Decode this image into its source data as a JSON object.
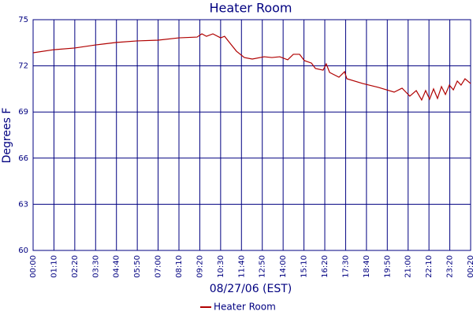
{
  "chart_data": {
    "type": "line",
    "title": "Heater Room",
    "x_label": "08/27/06 (EST)",
    "y_label": "Degrees F",
    "xlim": [
      0,
      21
    ],
    "ylim": [
      60,
      75
    ],
    "yticks": [
      60,
      63,
      66,
      69,
      72,
      75
    ],
    "xticks": [
      {
        "value": 0,
        "label": "00:00"
      },
      {
        "value": 1,
        "label": "01:10"
      },
      {
        "value": 2,
        "label": "02:20"
      },
      {
        "value": 3,
        "label": "03:30"
      },
      {
        "value": 4,
        "label": "04:40"
      },
      {
        "value": 5,
        "label": "05:50"
      },
      {
        "value": 6,
        "label": "07:00"
      },
      {
        "value": 7,
        "label": "08:10"
      },
      {
        "value": 8,
        "label": "09:20"
      },
      {
        "value": 9,
        "label": "10:30"
      },
      {
        "value": 10,
        "label": "11:40"
      },
      {
        "value": 11,
        "label": "12:50"
      },
      {
        "value": 12,
        "label": "14:00"
      },
      {
        "value": 13,
        "label": "15:10"
      },
      {
        "value": 14,
        "label": "16:20"
      },
      {
        "value": 15,
        "label": "17:30"
      },
      {
        "value": 16,
        "label": "18:40"
      },
      {
        "value": 17,
        "label": "19:50"
      },
      {
        "value": 18,
        "label": "21:00"
      },
      {
        "value": 19,
        "label": "22:10"
      },
      {
        "value": 20,
        "label": "23:20"
      },
      {
        "value": 21,
        "label": "00:20"
      }
    ],
    "grid": true,
    "legend": "bottom",
    "x": [
      0,
      1,
      2,
      3,
      4,
      5,
      6,
      7,
      7.87,
      8.1,
      8.32,
      8.63,
      9.0,
      9.19,
      9.46,
      9.76,
      10.14,
      10.52,
      11.09,
      11.46,
      11.84,
      12.22,
      12.49,
      12.79,
      13.02,
      13.36,
      13.55,
      13.92,
      14.07,
      14.23,
      14.68,
      14.95,
      15.06,
      15.82,
      16.57,
      17.33,
      17.71,
      18.08,
      18.39,
      18.65,
      18.84,
      19.03,
      19.22,
      19.41,
      19.6,
      19.79,
      19.98,
      20.17,
      20.36,
      20.54,
      20.73,
      21
    ],
    "series": [
      {
        "name": "Heater Room",
        "color": "#b00000",
        "values": [
          72.85,
          73.05,
          73.16,
          73.36,
          73.52,
          73.62,
          73.67,
          73.82,
          73.87,
          74.08,
          73.92,
          74.08,
          73.82,
          73.92,
          73.46,
          72.95,
          72.54,
          72.44,
          72.59,
          72.54,
          72.59,
          72.39,
          72.75,
          72.75,
          72.34,
          72.18,
          71.83,
          71.72,
          72.13,
          71.57,
          71.26,
          71.62,
          71.16,
          70.85,
          70.6,
          70.29,
          70.55,
          70.03,
          70.39,
          69.78,
          70.39,
          69.83,
          70.5,
          69.88,
          70.65,
          70.14,
          70.75,
          70.44,
          71.01,
          70.75,
          71.16,
          70.85
        ]
      }
    ]
  }
}
